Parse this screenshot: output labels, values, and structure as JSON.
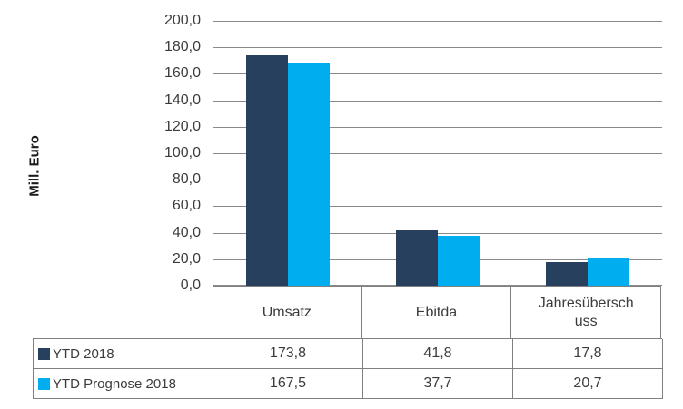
{
  "chart_data": {
    "type": "bar",
    "title": "",
    "xlabel": "",
    "ylabel": "Mill. Euro",
    "categories": [
      "Umsatz",
      "Ebitda",
      "Jahresüberschuss"
    ],
    "category_display": [
      "Umsatz",
      "Ebitda",
      "Jahresübersch\nuss"
    ],
    "series": [
      {
        "name": "YTD 2018",
        "color": "#27405E",
        "values": [
          173.8,
          41.8,
          17.8
        ],
        "value_labels": [
          "173,8",
          "41,8",
          "17,8"
        ]
      },
      {
        "name": "YTD Prognose 2018",
        "color": "#00AEEF",
        "values": [
          167.5,
          37.7,
          20.7
        ],
        "value_labels": [
          "167,5",
          "37,7",
          "20,7"
        ]
      }
    ],
    "ylim": [
      0,
      200
    ],
    "ytick_step": 20,
    "yticks": [
      "200,0",
      "180,0",
      "160,0",
      "140,0",
      "120,0",
      "100,0",
      "80,0",
      "60,0",
      "40,0",
      "20,0",
      "0,0"
    ],
    "grid": true,
    "legend_position": "data-table-left-column"
  },
  "colors": {
    "series_ytd_2018": "#27405E",
    "series_ytd_prognose_2018": "#00AEEF",
    "gridline": "#808080",
    "table_border": "#808080",
    "text": "#3B3B3B",
    "background": "#FFFFFF"
  }
}
